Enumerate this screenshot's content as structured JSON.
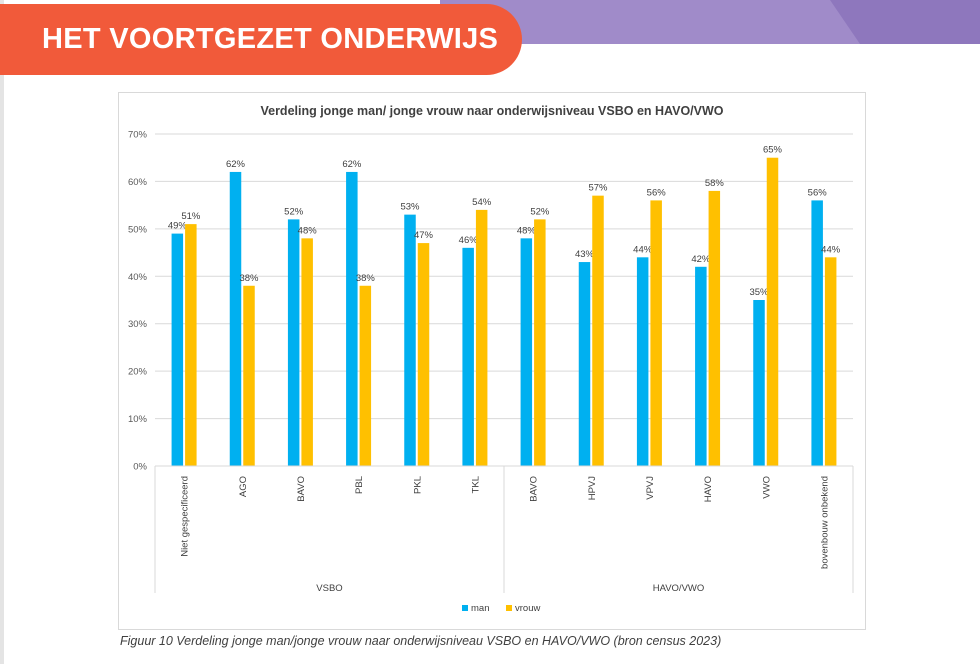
{
  "header": {
    "title": "HET VOORTGEZET ONDERWIJS"
  },
  "caption": "Figuur 10 Verdeling jonge man/jonge vrouw naar onderwijsniveau VSBO en HAVO/VWO (bron census 2023)",
  "colors": {
    "banner": "#f15a3a",
    "man": "#00b0f0",
    "vrouw": "#ffc000",
    "purple": "#a08bc9"
  },
  "chart_data": {
    "type": "bar",
    "title": "Verdeling jonge man/ jonge vrouw naar onderwijsniveau VSBO en HAVO/VWO",
    "xlabel": "",
    "ylabel": "",
    "ylim": [
      0,
      70
    ],
    "yticks": [
      "0%",
      "10%",
      "20%",
      "30%",
      "40%",
      "50%",
      "60%",
      "70%"
    ],
    "categories": [
      "Niet gespecificeerd",
      "AGO",
      "BAVO",
      "PBL",
      "PKL",
      "TKL",
      "BAVO",
      "HPVJ",
      "VPVJ",
      "HAVO",
      "VWO",
      "bovenbouw onbekend"
    ],
    "groups": [
      {
        "label": "VSBO",
        "count": 6
      },
      {
        "label": "HAVO/VWO",
        "count": 6
      }
    ],
    "series": [
      {
        "name": "man",
        "values": [
          49,
          62,
          52,
          62,
          53,
          46,
          48,
          43,
          44,
          42,
          35,
          56
        ],
        "labels": [
          "49%",
          "62%",
          "52%",
          "62%",
          "53%",
          "46%",
          "48%",
          "43%",
          "44%",
          "42%",
          "35%",
          "56%"
        ]
      },
      {
        "name": "vrouw",
        "values": [
          51,
          38,
          48,
          38,
          47,
          54,
          52,
          57,
          56,
          58,
          65,
          44
        ],
        "labels": [
          "51%",
          "38%",
          "48%",
          "38%",
          "47%",
          "54%",
          "52%",
          "57%",
          "56%",
          "58%",
          "65%",
          "44%"
        ]
      }
    ],
    "legend": "bottom",
    "grid": true
  }
}
